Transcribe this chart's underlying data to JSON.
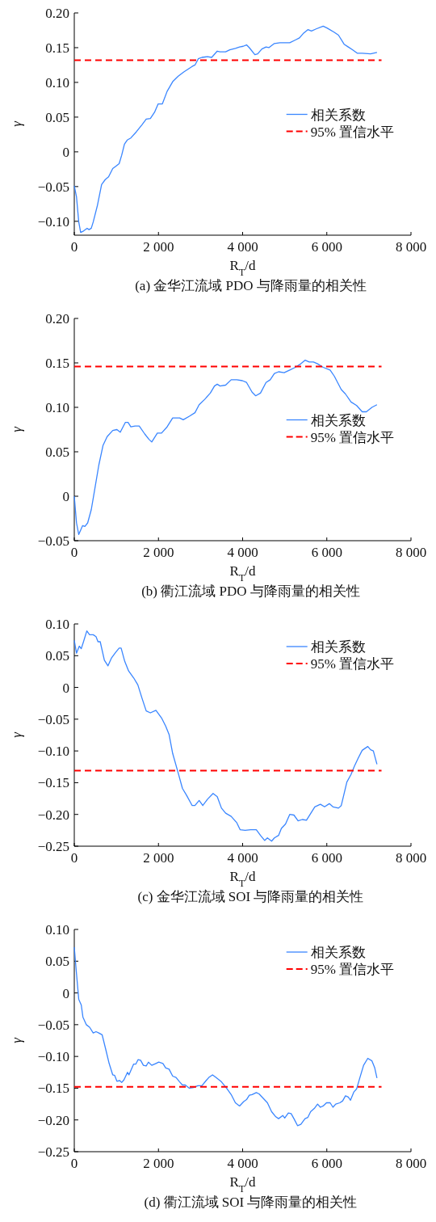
{
  "chart_data": [
    {
      "type": "line",
      "title": "(a) 金华江流域 PDO 与降雨量的相关性",
      "xlabel": "R$_{T}$/d",
      "ylabel": "γ",
      "xlim": [
        0,
        8000
      ],
      "ylim": [
        -0.12,
        0.2
      ],
      "xticks": [
        {
          "value": 0,
          "label": "0"
        },
        {
          "value": 2000,
          "label": "2 000"
        },
        {
          "value": 4000,
          "label": "4 000"
        },
        {
          "value": 6000,
          "label": "6 000"
        },
        {
          "value": 8000,
          "label": "8 000"
        }
      ],
      "yticks": [
        {
          "value": -0.1,
          "label": "−0.10"
        },
        {
          "value": -0.05,
          "label": "−0.05"
        },
        {
          "value": 0,
          "label": "0"
        },
        {
          "value": 0.05,
          "label": "0.05"
        },
        {
          "value": 0.1,
          "label": "0.10"
        },
        {
          "value": 0.15,
          "label": "0.15"
        },
        {
          "value": 0.2,
          "label": "0.20"
        }
      ],
      "legend": "right",
      "series": [
        {
          "name": "相关系数",
          "color": "#3a86ff",
          "line_style": "solid",
          "x": [
            0,
            53,
            106,
            152,
            219,
            305,
            351,
            404,
            450,
            550,
            649,
            735,
            815,
            914,
            980,
            1066,
            1126,
            1192,
            1258,
            1344,
            1477,
            1609,
            1709,
            1808,
            1907,
            1993,
            2093,
            2205,
            2338,
            2470,
            2603,
            2801,
            2868,
            2947,
            3033,
            3166,
            3265,
            3397,
            3464,
            3596,
            3695,
            3828,
            3927,
            4013,
            4093,
            4159,
            4291,
            4358,
            4457,
            4556,
            4623,
            4755,
            4887,
            4987,
            5119,
            5252,
            5351,
            5450,
            5550,
            5636,
            5748,
            5914,
            6013,
            6179,
            6278,
            6411,
            6510,
            6609,
            6722,
            6841,
            7040,
            7192
          ],
          "values": [
            -0.049,
            -0.065,
            -0.101,
            -0.116,
            -0.114,
            -0.11,
            -0.112,
            -0.11,
            -0.101,
            -0.077,
            -0.047,
            -0.04,
            -0.036,
            -0.024,
            -0.021,
            -0.017,
            -0.005,
            0.011,
            0.017,
            0.02,
            0.029,
            0.039,
            0.047,
            0.048,
            0.057,
            0.069,
            0.069,
            0.087,
            0.101,
            0.109,
            0.115,
            0.123,
            0.125,
            0.134,
            0.136,
            0.137,
            0.136,
            0.145,
            0.144,
            0.144,
            0.147,
            0.149,
            0.151,
            0.152,
            0.154,
            0.15,
            0.14,
            0.141,
            0.148,
            0.151,
            0.15,
            0.156,
            0.157,
            0.157,
            0.157,
            0.161,
            0.164,
            0.171,
            0.176,
            0.174,
            0.177,
            0.181,
            0.178,
            0.172,
            0.168,
            0.155,
            0.151,
            0.147,
            0.142,
            0.142,
            0.141,
            0.143
          ]
        },
        {
          "name": "95% 置信水平",
          "color": "#ff0000",
          "line_style": "dashed",
          "x": [
            0,
            7300
          ],
          "values": [
            0.132,
            0.132
          ]
        }
      ]
    },
    {
      "type": "line",
      "title": "(b) 衢江流域 PDO 与降雨量的相关性",
      "xlabel": "R$_{T}$/d",
      "ylabel": "γ",
      "xlim": [
        0,
        8000
      ],
      "ylim": [
        -0.05,
        0.2
      ],
      "xticks": [
        {
          "value": 0,
          "label": "0"
        },
        {
          "value": 2000,
          "label": "2 000"
        },
        {
          "value": 4000,
          "label": "4 000"
        },
        {
          "value": 6000,
          "label": "6 000"
        },
        {
          "value": 8000,
          "label": "8 000"
        }
      ],
      "yticks": [
        {
          "value": -0.05,
          "label": "−0.05"
        },
        {
          "value": 0,
          "label": "0"
        },
        {
          "value": 0.05,
          "label": "0.05"
        },
        {
          "value": 0.1,
          "label": "0.10"
        },
        {
          "value": 0.15,
          "label": "0.15"
        },
        {
          "value": 0.2,
          "label": "0.20"
        }
      ],
      "legend": "right",
      "series": [
        {
          "name": "相关系数",
          "color": "#3a86ff",
          "line_style": "solid",
          "x": [
            0,
            53,
            106,
            199,
            252,
            318,
            404,
            483,
            583,
            682,
            781,
            914,
            1013,
            1093,
            1212,
            1278,
            1344,
            1444,
            1543,
            1675,
            1775,
            1841,
            1974,
            2073,
            2205,
            2338,
            2417,
            2503,
            2589,
            2735,
            2868,
            2967,
            3099,
            3232,
            3331,
            3397,
            3464,
            3596,
            3728,
            3861,
            3993,
            4093,
            4225,
            4311,
            4424,
            4556,
            4656,
            4755,
            4854,
            4987,
            5119,
            5252,
            5384,
            5483,
            5583,
            5682,
            5781,
            5914,
            6079,
            6179,
            6344,
            6444,
            6576,
            6709,
            6841,
            6940,
            7073,
            7192
          ],
          "values": [
            0,
            -0.03,
            -0.043,
            -0.033,
            -0.034,
            -0.03,
            -0.015,
            0.007,
            0.035,
            0.057,
            0.067,
            0.074,
            0.075,
            0.072,
            0.083,
            0.083,
            0.078,
            0.079,
            0.079,
            0.07,
            0.064,
            0.061,
            0.071,
            0.071,
            0.078,
            0.088,
            0.088,
            0.088,
            0.086,
            0.09,
            0.094,
            0.103,
            0.109,
            0.116,
            0.124,
            0.126,
            0.124,
            0.125,
            0.131,
            0.131,
            0.13,
            0.128,
            0.117,
            0.113,
            0.116,
            0.128,
            0.131,
            0.138,
            0.14,
            0.139,
            0.142,
            0.145,
            0.149,
            0.153,
            0.151,
            0.151,
            0.149,
            0.145,
            0.142,
            0.135,
            0.12,
            0.115,
            0.106,
            0.102,
            0.095,
            0.095,
            0.1,
            0.103
          ]
        },
        {
          "name": "95% 置信水平",
          "color": "#ff0000",
          "line_style": "dashed",
          "x": [
            0,
            7300
          ],
          "values": [
            0.146,
            0.146
          ]
        }
      ]
    },
    {
      "type": "line",
      "title": "(c) 金华江流域 SOI 与降雨量的相关性",
      "xlabel": "R$_{T}$/d",
      "ylabel": "γ",
      "xlim": [
        0,
        8000
      ],
      "ylim": [
        -0.25,
        0.1
      ],
      "xticks": [
        0,
        {
          "value": 2000,
          "label": "2 000"
        },
        {
          "value": 4000,
          "label": "4 000"
        },
        {
          "value": 6000,
          "label": "6 000"
        },
        {
          "value": 8000,
          "label": "8 000"
        }
      ],
      "yticks": [
        {
          "value": -0.25,
          "label": "−0.25"
        },
        {
          "value": -0.2,
          "label": "−0.20"
        },
        {
          "value": -0.15,
          "label": "−0.15"
        },
        {
          "value": -0.1,
          "label": "−0.10"
        },
        {
          "value": -0.05,
          "label": "−0.05"
        },
        0,
        {
          "value": 0.05,
          "label": "0.05"
        },
        {
          "value": 0.1,
          "label": "0.10"
        }
      ],
      "legend": "top right",
      "series": [
        {
          "name": "相关系数",
          "color": "#3a86ff",
          "line_style": "solid",
          "x": [
            0,
            53,
            119,
            166,
            219,
            298,
            364,
            450,
            517,
            563,
            616,
            715,
            801,
            881,
            980,
            1066,
            1113,
            1199,
            1291,
            1411,
            1510,
            1609,
            1709,
            1808,
            1940,
            2073,
            2172,
            2252,
            2338,
            2470,
            2570,
            2669,
            2801,
            2868,
            2967,
            3053,
            3166,
            3298,
            3397,
            3497,
            3596,
            3728,
            3861,
            3940,
            4060,
            4192,
            4325,
            4424,
            4523,
            4589,
            4689,
            4755,
            4854,
            4921,
            5020,
            5119,
            5219,
            5318,
            5417,
            5517,
            5583,
            5715,
            5848,
            5947,
            6060,
            6146,
            6278,
            6344,
            6477,
            6576,
            6656,
            6742,
            6841,
            6974,
            7040,
            7106,
            7192
          ],
          "values": [
            0.074,
            0.054,
            0.065,
            0.061,
            0.072,
            0.089,
            0.083,
            0.083,
            0.08,
            0.072,
            0.072,
            0.043,
            0.034,
            0.046,
            0.055,
            0.062,
            0.062,
            0.041,
            0.026,
            0.015,
            0.004,
            -0.017,
            -0.037,
            -0.04,
            -0.036,
            -0.048,
            -0.061,
            -0.074,
            -0.104,
            -0.135,
            -0.159,
            -0.17,
            -0.186,
            -0.186,
            -0.178,
            -0.186,
            -0.176,
            -0.167,
            -0.172,
            -0.19,
            -0.198,
            -0.203,
            -0.213,
            -0.224,
            -0.225,
            -0.224,
            -0.224,
            -0.233,
            -0.241,
            -0.237,
            -0.242,
            -0.237,
            -0.233,
            -0.222,
            -0.215,
            -0.2,
            -0.201,
            -0.21,
            -0.208,
            -0.209,
            -0.202,
            -0.188,
            -0.184,
            -0.188,
            -0.183,
            -0.188,
            -0.19,
            -0.186,
            -0.149,
            -0.137,
            -0.124,
            -0.112,
            -0.099,
            -0.093,
            -0.098,
            -0.1,
            -0.121
          ]
        },
        {
          "name": "95% 置信水平",
          "color": "#ff0000",
          "line_style": "dashed",
          "x": [
            0,
            7300
          ],
          "values": [
            -0.131,
            -0.131
          ]
        }
      ]
    },
    {
      "type": "line",
      "title": "(d) 衢江流域 SOI 与降雨量的相关性",
      "xlabel": "R$_{T}$/d",
      "ylabel": "γ",
      "xlim": [
        0,
        8000
      ],
      "ylim": [
        -0.25,
        0.1
      ],
      "xticks": [
        0,
        {
          "value": 2000,
          "label": "2 000"
        },
        {
          "value": 4000,
          "label": "4 000"
        },
        {
          "value": 6000,
          "label": "6 000"
        },
        {
          "value": 8000,
          "label": "8 000"
        }
      ],
      "yticks": [
        {
          "value": -0.25,
          "label": "−0.25"
        },
        {
          "value": -0.2,
          "label": "−0.20"
        },
        {
          "value": -0.15,
          "label": "−0.15"
        },
        {
          "value": -0.1,
          "label": "−0.10"
        },
        {
          "value": -0.05,
          "label": "−0.05"
        },
        0,
        {
          "value": 0.05,
          "label": "0.05"
        },
        {
          "value": 0.1,
          "label": "0.10"
        }
      ],
      "legend": "top right",
      "series": [
        {
          "name": "相关系数",
          "color": "#3a86ff",
          "line_style": "solid",
          "x": [
            0,
            53,
            106,
            166,
            205,
            285,
            364,
            450,
            517,
            583,
            662,
            748,
            828,
            914,
            960,
            1013,
            1079,
            1126,
            1179,
            1265,
            1298,
            1411,
            1464,
            1517,
            1576,
            1642,
            1709,
            1762,
            1841,
            1940,
            2007,
            2106,
            2172,
            2252,
            2338,
            2417,
            2503,
            2570,
            2636,
            2735,
            2834,
            2934,
            3033,
            3132,
            3199,
            3285,
            3364,
            3497,
            3629,
            3728,
            3828,
            3927,
            4026,
            4093,
            4159,
            4225,
            4325,
            4391,
            4490,
            4589,
            4689,
            4788,
            4854,
            4954,
            5000,
            5086,
            5152,
            5219,
            5305,
            5384,
            5483,
            5550,
            5616,
            5702,
            5781,
            5848,
            5914,
            5993,
            6079,
            6146,
            6212,
            6311,
            6377,
            6444,
            6510,
            6563,
            6642,
            6709,
            6775,
            6874,
            6974,
            7073,
            7139,
            7192
          ],
          "values": [
            0.072,
            0.03,
            -0.01,
            -0.019,
            -0.038,
            -0.05,
            -0.054,
            -0.063,
            -0.061,
            -0.063,
            -0.066,
            -0.089,
            -0.111,
            -0.129,
            -0.13,
            -0.139,
            -0.138,
            -0.141,
            -0.137,
            -0.125,
            -0.129,
            -0.112,
            -0.112,
            -0.105,
            -0.106,
            -0.114,
            -0.115,
            -0.109,
            -0.114,
            -0.111,
            -0.109,
            -0.111,
            -0.118,
            -0.12,
            -0.131,
            -0.133,
            -0.14,
            -0.145,
            -0.145,
            -0.15,
            -0.149,
            -0.146,
            -0.146,
            -0.138,
            -0.133,
            -0.129,
            -0.133,
            -0.14,
            -0.151,
            -0.16,
            -0.173,
            -0.178,
            -0.171,
            -0.168,
            -0.161,
            -0.16,
            -0.157,
            -0.159,
            -0.166,
            -0.173,
            -0.187,
            -0.195,
            -0.198,
            -0.193,
            -0.197,
            -0.189,
            -0.19,
            -0.198,
            -0.209,
            -0.207,
            -0.198,
            -0.196,
            -0.187,
            -0.182,
            -0.175,
            -0.18,
            -0.178,
            -0.173,
            -0.173,
            -0.18,
            -0.175,
            -0.173,
            -0.17,
            -0.162,
            -0.164,
            -0.169,
            -0.156,
            -0.151,
            -0.136,
            -0.114,
            -0.103,
            -0.107,
            -0.118,
            -0.134
          ]
        },
        {
          "name": "95% 置信水平",
          "color": "#ff0000",
          "line_style": "dashed",
          "x": [
            0,
            7300
          ],
          "values": [
            -0.148,
            -0.148
          ]
        }
      ]
    }
  ]
}
